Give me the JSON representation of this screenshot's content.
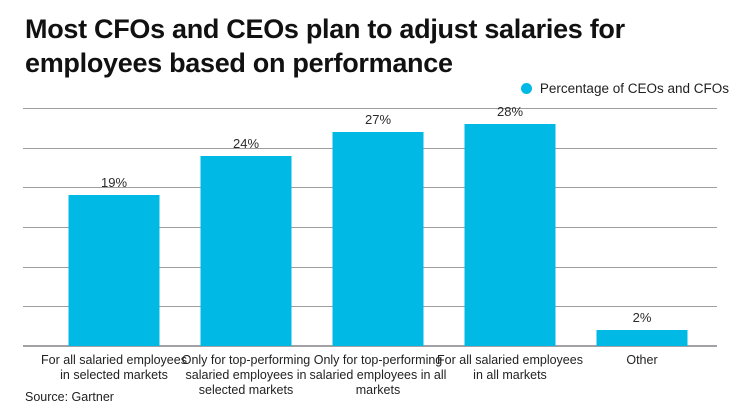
{
  "page": {
    "title": "Most CFOs and CEOs plan to adjust salaries for employees based on performance",
    "source": "Source: Gartner"
  },
  "legend": {
    "label": "Percentage of CEOs and CFOs",
    "marker_color": "#00b9e4"
  },
  "colors": {
    "bar": "#00b9e4",
    "gridline": "#9e9ea2",
    "title_text": "#111111"
  },
  "chart_data": {
    "type": "bar",
    "title": "Most CFOs and CEOs plan to adjust salaries for employees based on performance",
    "categories": [
      "For all salaried employees in selected markets",
      "Only for top-performing salaried employees in selected markets",
      "Only for top-performing salaried employees in all markets",
      "For all salaried employees in all markets",
      "Other"
    ],
    "values": [
      19,
      24,
      27,
      28,
      2
    ],
    "value_labels": [
      "19%",
      "24%",
      "27%",
      "28%",
      "2%"
    ],
    "xlabel": "",
    "ylabel": "",
    "ylim": [
      0,
      30
    ],
    "gridline_values": [
      0,
      5,
      10,
      15,
      20,
      25,
      30
    ],
    "grid": true,
    "legend": "Percentage of CEOs and CFOs",
    "legend_position": "top-right",
    "bar_color": "#00b9e4",
    "source": "Source: Gartner"
  }
}
